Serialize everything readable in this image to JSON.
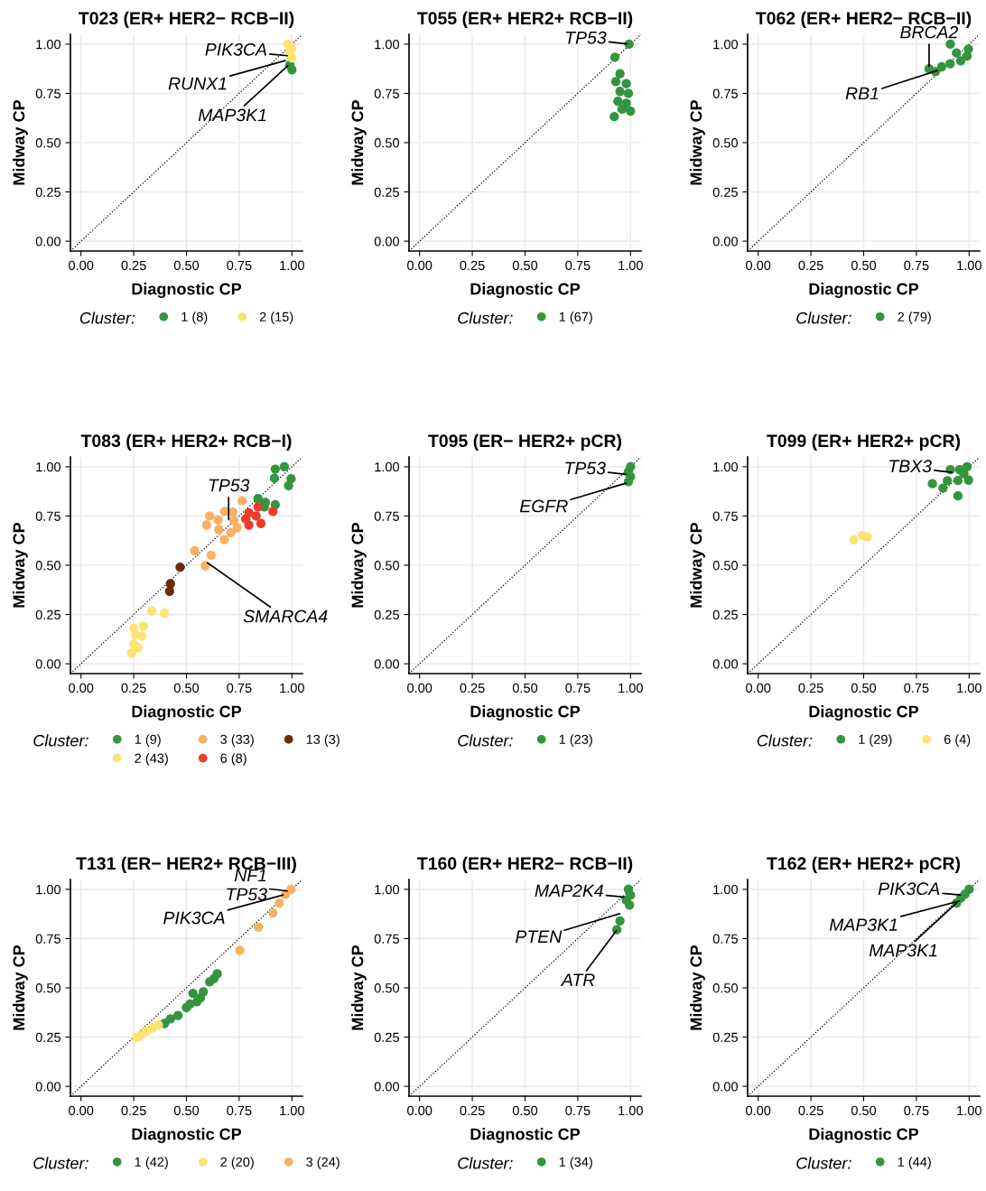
{
  "chart_data": [
    {
      "type": "scatter",
      "title": "T023 (ER+ HER2− RCB−II)",
      "xlabel": "Diagnostic CP",
      "ylabel": "Midway CP",
      "legend_title": "Cluster:",
      "legend": "bottom",
      "grid": true,
      "marker": "circle",
      "xlim": [
        -0.05,
        1.05
      ],
      "ylim": [
        -0.05,
        1.05
      ],
      "xticks": [
        {
          "value": 0,
          "label": "0.00"
        },
        {
          "value": 0.25,
          "label": "0.25"
        },
        {
          "value": 0.5,
          "label": "0.50"
        },
        {
          "value": 0.75,
          "label": "0.75"
        },
        {
          "value": 1,
          "label": "1.00"
        }
      ],
      "yticks": [
        {
          "value": 0,
          "label": "0.00"
        },
        {
          "value": 0.25,
          "label": "0.25"
        },
        {
          "value": 0.5,
          "label": "0.50"
        },
        {
          "value": 0.75,
          "label": "0.75"
        },
        {
          "value": 1,
          "label": "1.00"
        }
      ],
      "series": [
        {
          "type": "line",
          "color": "#000000",
          "line_style": "dotted",
          "marker": "none",
          "x": [
            -0.05,
            1.05
          ],
          "values": [
            -0.05,
            1.05
          ]
        },
        {
          "name": "1 (8)",
          "color": "#33953f",
          "x": [
            1.0,
            0.99
          ],
          "values": [
            0.87,
            0.895
          ]
        },
        {
          "name": "2 (15)",
          "color": "#fde472",
          "x": [
            0.98,
            1.0,
            0.99,
            1.0
          ],
          "values": [
            1.0,
            0.98,
            0.955,
            0.93
          ]
        }
      ],
      "annotations": [
        {
          "text": "PIK3CA",
          "x": 0.99,
          "y": 0.94
        },
        {
          "text": "RUNX1",
          "x": 0.98,
          "y": 0.92
        },
        {
          "text": "MAP3K1",
          "x": 0.99,
          "y": 0.9
        }
      ]
    },
    {
      "type": "scatter",
      "title": "T055 (ER+ HER2+ RCB−II)",
      "xlabel": "Diagnostic CP",
      "ylabel": "Midway CP",
      "legend_title": "Cluster:",
      "legend": "bottom",
      "grid": true,
      "marker": "circle",
      "xlim": [
        -0.05,
        1.05
      ],
      "ylim": [
        -0.05,
        1.05
      ],
      "xticks": [
        {
          "value": 0,
          "label": "0.00"
        },
        {
          "value": 0.25,
          "label": "0.25"
        },
        {
          "value": 0.5,
          "label": "0.50"
        },
        {
          "value": 0.75,
          "label": "0.75"
        },
        {
          "value": 1,
          "label": "1.00"
        }
      ],
      "yticks": [
        {
          "value": 0,
          "label": "0.00"
        },
        {
          "value": 0.25,
          "label": "0.25"
        },
        {
          "value": 0.5,
          "label": "0.50"
        },
        {
          "value": 0.75,
          "label": "0.75"
        },
        {
          "value": 1,
          "label": "1.00"
        }
      ],
      "series": [
        {
          "type": "line",
          "color": "#000000",
          "line_style": "dotted",
          "marker": "none",
          "x": [
            -0.05,
            1.05
          ],
          "values": [
            -0.05,
            1.05
          ]
        },
        {
          "name": "1 (67)",
          "color": "#33953f",
          "x": [
            0.993,
            0.926,
            0.95,
            0.93,
            0.98,
            0.95,
            0.99,
            0.94,
            0.98,
            0.96,
            1.0,
            0.923
          ],
          "values": [
            1.0,
            0.934,
            0.85,
            0.81,
            0.8,
            0.76,
            0.75,
            0.71,
            0.7,
            0.67,
            0.66,
            0.632
          ]
        }
      ],
      "annotations": [
        {
          "text": "TP53",
          "x": 0.993,
          "y": 1.0
        }
      ]
    },
    {
      "type": "scatter",
      "title": "T062 (ER+ HER2− RCB−II)",
      "xlabel": "Diagnostic CP",
      "ylabel": "Midway CP",
      "legend_title": "Cluster:",
      "legend": "bottom",
      "grid": true,
      "marker": "circle",
      "xlim": [
        -0.05,
        1.05
      ],
      "ylim": [
        -0.05,
        1.05
      ],
      "xticks": [
        {
          "value": 0,
          "label": "0.00"
        },
        {
          "value": 0.25,
          "label": "0.25"
        },
        {
          "value": 0.5,
          "label": "0.50"
        },
        {
          "value": 0.75,
          "label": "0.75"
        },
        {
          "value": 1,
          "label": "1.00"
        }
      ],
      "yticks": [
        {
          "value": 0,
          "label": "0.00"
        },
        {
          "value": 0.25,
          "label": "0.25"
        },
        {
          "value": 0.5,
          "label": "0.50"
        },
        {
          "value": 0.75,
          "label": "0.75"
        },
        {
          "value": 1,
          "label": "1.00"
        }
      ],
      "series": [
        {
          "type": "line",
          "color": "#000000",
          "line_style": "dotted",
          "marker": "none",
          "x": [
            -0.05,
            1.05
          ],
          "values": [
            -0.05,
            1.05
          ]
        },
        {
          "name": "2 (79)",
          "color": "#33953f",
          "x": [
            0.911,
            0.997,
            0.94,
            0.96,
            0.91,
            0.87,
            0.84,
            0.81,
            0.99
          ],
          "values": [
            1.0,
            0.975,
            0.955,
            0.915,
            0.9,
            0.885,
            0.86,
            0.875,
            0.94
          ]
        }
      ],
      "annotations": [
        {
          "text": "BRCA2",
          "x": 0.81,
          "y": 0.875
        },
        {
          "text": "RB1",
          "x": 0.86,
          "y": 0.87
        }
      ]
    },
    {
      "type": "scatter",
      "title": "T083 (ER+ HER2+ RCB−I)",
      "xlabel": "Diagnostic CP",
      "ylabel": "Midway CP",
      "legend_title": "Cluster:",
      "legend": "bottom",
      "grid": true,
      "marker": "circle",
      "xlim": [
        -0.05,
        1.05
      ],
      "ylim": [
        -0.05,
        1.05
      ],
      "xticks": [
        {
          "value": 0,
          "label": "0.00"
        },
        {
          "value": 0.25,
          "label": "0.25"
        },
        {
          "value": 0.5,
          "label": "0.50"
        },
        {
          "value": 0.75,
          "label": "0.75"
        },
        {
          "value": 1,
          "label": "1.00"
        }
      ],
      "yticks": [
        {
          "value": 0,
          "label": "0.00"
        },
        {
          "value": 0.25,
          "label": "0.25"
        },
        {
          "value": 0.5,
          "label": "0.50"
        },
        {
          "value": 0.75,
          "label": "0.75"
        },
        {
          "value": 1,
          "label": "1.00"
        }
      ],
      "series": [
        {
          "type": "line",
          "color": "#000000",
          "line_style": "dotted",
          "marker": "none",
          "x": [
            -0.05,
            1.05
          ],
          "values": [
            -0.05,
            1.05
          ]
        },
        {
          "name": "1 (9)",
          "color": "#33953f",
          "x": [
            0.921,
            0.964,
            0.917,
            0.996,
            0.984,
            0.839,
            0.874,
            0.921,
            0.869
          ],
          "values": [
            0.988,
            1.0,
            0.942,
            0.939,
            0.904,
            0.838,
            0.819,
            0.807,
            0.796
          ]
        },
        {
          "name": "2 (43)",
          "color": "#fde472",
          "x": [
            0.336,
            0.396,
            0.239,
            0.25,
            0.26,
            0.296,
            0.25,
            0.29,
            0.27
          ],
          "values": [
            0.268,
            0.257,
            0.054,
            0.1,
            0.145,
            0.191,
            0.18,
            0.14,
            0.08
          ]
        },
        {
          "name": "3 (33)",
          "color": "#f8b163",
          "x": [
            0.764,
            0.61,
            0.681,
            0.724,
            0.596,
            0.653,
            0.71,
            0.539,
            0.617,
            0.589,
            0.65,
            0.74,
            0.68,
            0.72
          ],
          "values": [
            0.827,
            0.75,
            0.773,
            0.727,
            0.704,
            0.681,
            0.666,
            0.574,
            0.551,
            0.497,
            0.73,
            0.69,
            0.63,
            0.77
          ]
        },
        {
          "name": "6 (8)",
          "color": "#ee3a2c",
          "x": [
            0.839,
            0.796,
            0.781,
            0.796,
            0.853,
            0.91,
            0.83
          ],
          "values": [
            0.796,
            0.766,
            0.735,
            0.704,
            0.712,
            0.773,
            0.75
          ]
        },
        {
          "name": "13 (3)",
          "color": "#6b2a0a",
          "x": [
            0.47,
            0.424,
            0.42
          ],
          "values": [
            0.49,
            0.406,
            0.368
          ]
        }
      ],
      "annotations": [
        {
          "text": "TP53",
          "x": 0.7,
          "y": 0.72
        },
        {
          "text": "SMARCA4",
          "x": 0.59,
          "y": 0.52
        }
      ]
    },
    {
      "type": "scatter",
      "title": "T095 (ER− HER2+ pCR)",
      "xlabel": "Diagnostic CP",
      "ylabel": "Midway CP",
      "legend_title": "Cluster:",
      "legend": "bottom",
      "grid": true,
      "marker": "circle",
      "xlim": [
        -0.05,
        1.05
      ],
      "ylim": [
        -0.05,
        1.05
      ],
      "xticks": [
        {
          "value": 0,
          "label": "0.00"
        },
        {
          "value": 0.25,
          "label": "0.25"
        },
        {
          "value": 0.5,
          "label": "0.50"
        },
        {
          "value": 0.75,
          "label": "0.75"
        },
        {
          "value": 1,
          "label": "1.00"
        }
      ],
      "yticks": [
        {
          "value": 0,
          "label": "0.00"
        },
        {
          "value": 0.25,
          "label": "0.25"
        },
        {
          "value": 0.5,
          "label": "0.50"
        },
        {
          "value": 0.75,
          "label": "0.75"
        },
        {
          "value": 1,
          "label": "1.00"
        }
      ],
      "series": [
        {
          "type": "line",
          "color": "#000000",
          "line_style": "dotted",
          "marker": "none",
          "x": [
            -0.05,
            1.05
          ],
          "values": [
            -0.05,
            1.05
          ]
        },
        {
          "name": "1 (23)",
          "color": "#33953f",
          "x": [
            1.0,
            0.99,
            1.0,
            0.99
          ],
          "values": [
            1.0,
            0.975,
            0.95,
            0.925
          ]
        }
      ],
      "annotations": [
        {
          "text": "TP53",
          "x": 0.99,
          "y": 0.96
        },
        {
          "text": "EGFR",
          "x": 0.99,
          "y": 0.92
        }
      ]
    },
    {
      "type": "scatter",
      "title": "T099 (ER+ HER2+ pCR)",
      "xlabel": "Diagnostic CP",
      "ylabel": "Midway CP",
      "legend_title": "Cluster:",
      "legend": "bottom",
      "grid": true,
      "marker": "circle",
      "xlim": [
        -0.05,
        1.05
      ],
      "ylim": [
        -0.05,
        1.05
      ],
      "xticks": [
        {
          "value": 0,
          "label": "0.00"
        },
        {
          "value": 0.25,
          "label": "0.25"
        },
        {
          "value": 0.5,
          "label": "0.50"
        },
        {
          "value": 0.75,
          "label": "0.75"
        },
        {
          "value": 1,
          "label": "1.00"
        }
      ],
      "yticks": [
        {
          "value": 0,
          "label": "0.00"
        },
        {
          "value": 0.25,
          "label": "0.25"
        },
        {
          "value": 0.5,
          "label": "0.50"
        },
        {
          "value": 0.75,
          "label": "0.75"
        },
        {
          "value": 1,
          "label": "1.00"
        }
      ],
      "series": [
        {
          "type": "line",
          "color": "#000000",
          "line_style": "dotted",
          "marker": "none",
          "x": [
            -0.05,
            1.05
          ],
          "values": [
            -0.05,
            1.05
          ]
        },
        {
          "name": "1 (29)",
          "color": "#33953f",
          "x": [
            0.826,
            0.876,
            0.897,
            0.947,
            0.911,
            0.99,
            0.997,
            0.947,
            0.955,
            0.975
          ],
          "values": [
            0.914,
            0.891,
            0.929,
            0.852,
            0.985,
            1.0,
            0.932,
            0.93,
            0.985,
            0.965
          ]
        },
        {
          "name": "6 (4)",
          "color": "#fde472",
          "x": [
            0.453,
            0.494,
            0.518
          ],
          "values": [
            0.629,
            0.652,
            0.644
          ]
        }
      ],
      "annotations": [
        {
          "text": "TBX3",
          "x": 0.93,
          "y": 0.97
        }
      ]
    },
    {
      "type": "scatter",
      "title": "T131 (ER− HER2+ RCB−III)",
      "xlabel": "Diagnostic CP",
      "ylabel": "Midway CP",
      "legend_title": "Cluster:",
      "legend": "bottom",
      "grid": true,
      "marker": "circle",
      "xlim": [
        -0.05,
        1.05
      ],
      "ylim": [
        -0.05,
        1.05
      ],
      "xticks": [
        {
          "value": 0,
          "label": "0.00"
        },
        {
          "value": 0.25,
          "label": "0.25"
        },
        {
          "value": 0.5,
          "label": "0.50"
        },
        {
          "value": 0.75,
          "label": "0.75"
        },
        {
          "value": 1,
          "label": "1.00"
        }
      ],
      "yticks": [
        {
          "value": 0,
          "label": "0.00"
        },
        {
          "value": 0.25,
          "label": "0.25"
        },
        {
          "value": 0.5,
          "label": "0.50"
        },
        {
          "value": 0.75,
          "label": "0.75"
        },
        {
          "value": 1,
          "label": "1.00"
        }
      ],
      "series": [
        {
          "type": "line",
          "color": "#000000",
          "line_style": "dotted",
          "marker": "none",
          "x": [
            -0.05,
            1.05
          ],
          "values": [
            -0.05,
            1.05
          ]
        },
        {
          "name": "1 (42)",
          "color": "#33953f",
          "x": [
            0.646,
            0.631,
            0.567,
            0.531,
            0.517,
            0.424,
            0.396,
            0.5,
            0.46,
            0.58,
            0.55,
            0.61
          ],
          "values": [
            0.571,
            0.548,
            0.449,
            0.472,
            0.418,
            0.342,
            0.319,
            0.4,
            0.36,
            0.48,
            0.43,
            0.53
          ]
        },
        {
          "name": "2 (20)",
          "color": "#fde472",
          "x": [
            0.367,
            0.339,
            0.31,
            0.281,
            0.264
          ],
          "values": [
            0.311,
            0.296,
            0.28,
            0.257,
            0.25
          ]
        },
        {
          "name": "3 (24)",
          "color": "#f8b163",
          "x": [
            0.996,
            0.97,
            0.94,
            0.91,
            0.841,
            0.753
          ],
          "values": [
            1.0,
            0.975,
            0.93,
            0.88,
            0.808,
            0.69
          ]
        }
      ],
      "annotations": [
        {
          "text": "NF1\nTP53",
          "x": 0.99,
          "y": 0.99
        },
        {
          "text": "PIK3CA",
          "x": 0.97,
          "y": 0.975
        }
      ]
    },
    {
      "type": "scatter",
      "title": "T160 (ER+ HER2− RCB−II)",
      "xlabel": "Diagnostic CP",
      "ylabel": "Midway CP",
      "legend_title": "Cluster:",
      "legend": "bottom",
      "grid": true,
      "marker": "circle",
      "xlim": [
        -0.05,
        1.05
      ],
      "ylim": [
        -0.05,
        1.05
      ],
      "xticks": [
        {
          "value": 0,
          "label": "0.00"
        },
        {
          "value": 0.25,
          "label": "0.25"
        },
        {
          "value": 0.5,
          "label": "0.50"
        },
        {
          "value": 0.75,
          "label": "0.75"
        },
        {
          "value": 1,
          "label": "1.00"
        }
      ],
      "yticks": [
        {
          "value": 0,
          "label": "0.00"
        },
        {
          "value": 0.25,
          "label": "0.25"
        },
        {
          "value": 0.5,
          "label": "0.50"
        },
        {
          "value": 0.75,
          "label": "0.75"
        },
        {
          "value": 1,
          "label": "1.00"
        }
      ],
      "series": [
        {
          "type": "line",
          "color": "#000000",
          "line_style": "dotted",
          "marker": "none",
          "x": [
            -0.05,
            1.05
          ],
          "values": [
            -0.05,
            1.05
          ]
        },
        {
          "name": "1 (34)",
          "color": "#33953f",
          "x": [
            0.99,
            1.0,
            0.98,
            0.995,
            0.95,
            0.935
          ],
          "values": [
            1.0,
            0.97,
            0.945,
            0.92,
            0.84,
            0.795
          ]
        }
      ],
      "annotations": [
        {
          "text": "MAP2K4",
          "x": 0.98,
          "y": 0.96
        },
        {
          "text": "PTEN",
          "x": 0.96,
          "y": 0.88
        },
        {
          "text": "ATR",
          "x": 0.94,
          "y": 0.8
        }
      ]
    },
    {
      "type": "scatter",
      "title": "T162 (ER+ HER2+ pCR)",
      "xlabel": "Diagnostic CP",
      "ylabel": "Midway CP",
      "legend_title": "Cluster:",
      "legend": "bottom",
      "grid": true,
      "marker": "circle",
      "xlim": [
        -0.05,
        1.05
      ],
      "ylim": [
        -0.05,
        1.05
      ],
      "xticks": [
        {
          "value": 0,
          "label": "0.00"
        },
        {
          "value": 0.25,
          "label": "0.25"
        },
        {
          "value": 0.5,
          "label": "0.50"
        },
        {
          "value": 0.75,
          "label": "0.75"
        },
        {
          "value": 1,
          "label": "1.00"
        }
      ],
      "yticks": [
        {
          "value": 0,
          "label": "0.00"
        },
        {
          "value": 0.25,
          "label": "0.25"
        },
        {
          "value": 0.5,
          "label": "0.50"
        },
        {
          "value": 0.75,
          "label": "0.75"
        },
        {
          "value": 1,
          "label": "1.00"
        }
      ],
      "series": [
        {
          "type": "line",
          "color": "#000000",
          "line_style": "dotted",
          "marker": "none",
          "x": [
            -0.05,
            1.05
          ],
          "values": [
            -0.05,
            1.05
          ]
        },
        {
          "name": "1 (44)",
          "color": "#33953f",
          "x": [
            1.0,
            0.98,
            0.96,
            0.94
          ],
          "values": [
            1.0,
            0.975,
            0.955,
            0.93
          ]
        }
      ],
      "annotations": [
        {
          "text": "PIK3CA",
          "x": 0.97,
          "y": 0.97
        },
        {
          "text": "MAP3K1",
          "x": 0.95,
          "y": 0.94
        },
        {
          "text": "MAP3K1",
          "x": 0.96,
          "y": 0.95
        }
      ]
    }
  ]
}
